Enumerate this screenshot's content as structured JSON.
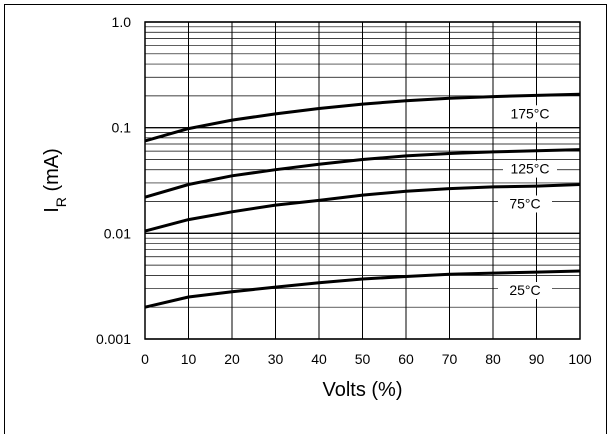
{
  "chart_data": {
    "type": "line",
    "xlabel": "Volts (%)",
    "ylabel": "I",
    "ylabel_sub": "R",
    "ylabel_unit": " (mA)",
    "yscale": "log",
    "ylim": [
      0.001,
      1.0
    ],
    "xlim": [
      0,
      100
    ],
    "grid": true,
    "x_ticks": [
      "0",
      "10",
      "20",
      "30",
      "40",
      "50",
      "60",
      "70",
      "80",
      "90",
      "100"
    ],
    "y_ticks": [
      "1.0",
      "0.1",
      "0.01",
      "0.001"
    ],
    "series": [
      {
        "name": "175°C",
        "x": [
          0,
          10,
          20,
          30,
          40,
          50,
          60,
          70,
          80,
          90,
          100
        ],
        "values": [
          0.075,
          0.098,
          0.118,
          0.135,
          0.152,
          0.167,
          0.18,
          0.19,
          0.197,
          0.202,
          0.207
        ]
      },
      {
        "name": "125°C",
        "x": [
          0,
          10,
          20,
          30,
          40,
          50,
          60,
          70,
          80,
          90,
          100
        ],
        "values": [
          0.022,
          0.029,
          0.035,
          0.04,
          0.045,
          0.05,
          0.054,
          0.057,
          0.059,
          0.0605,
          0.062
        ]
      },
      {
        "name": "75°C",
        "x": [
          0,
          10,
          20,
          30,
          40,
          50,
          60,
          70,
          80,
          90,
          100
        ],
        "values": [
          0.0105,
          0.0135,
          0.016,
          0.0185,
          0.0205,
          0.023,
          0.025,
          0.0265,
          0.0275,
          0.028,
          0.029
        ]
      },
      {
        "name": "25°C",
        "x": [
          0,
          10,
          20,
          30,
          40,
          50,
          60,
          70,
          80,
          90,
          100
        ],
        "values": [
          0.002,
          0.0025,
          0.0028,
          0.0031,
          0.0034,
          0.0037,
          0.0039,
          0.0041,
          0.0042,
          0.0043,
          0.0044
        ]
      }
    ]
  }
}
